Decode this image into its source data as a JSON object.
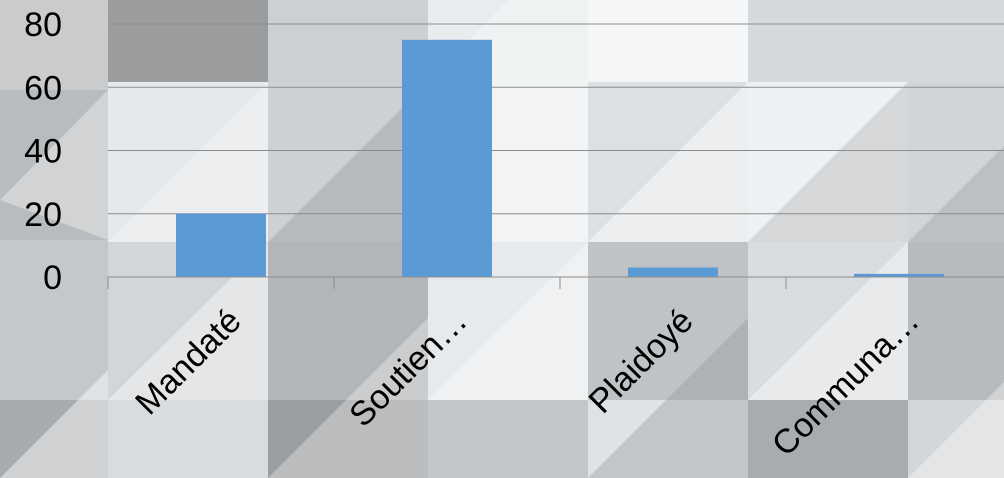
{
  "chart_data": {
    "type": "bar",
    "categories": [
      "Mandaté",
      "Soutien…",
      "Plaidoyé",
      "Communa…"
    ],
    "values": [
      20,
      75,
      3,
      1
    ],
    "yticks": [
      "0",
      "20",
      "40",
      "60",
      "80"
    ],
    "ylim": [
      0,
      80
    ],
    "grid": true,
    "legend": "none",
    "bar_color": "#5b9bd5",
    "grid_color": "#8c8c8c"
  }
}
